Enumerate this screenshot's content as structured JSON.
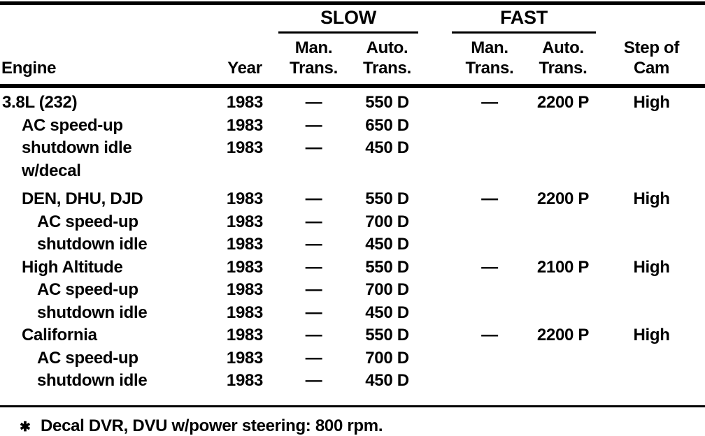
{
  "header": {
    "engine": "Engine",
    "year": "Year",
    "slow_group": "SLOW",
    "fast_group": "FAST",
    "slow_man_line1": "Man.",
    "slow_man_line2": "Trans.",
    "slow_auto_line1": "Auto.",
    "slow_auto_line2": "Trans.",
    "fast_man_line1": "Man.",
    "fast_man_line2": "Trans.",
    "fast_auto_line1": "Auto.",
    "fast_auto_line2": "Trans.",
    "step_line1": "Step of",
    "step_line2": "Cam"
  },
  "rows": [
    {
      "engine": "3.8L (232)",
      "year": "1983",
      "slow_man": "—",
      "slow_auto": "550 D",
      "fast_man": "—",
      "fast_auto": "2200 P",
      "step": "High"
    },
    {
      "engine": "AC speed-up",
      "year": "1983",
      "slow_man": "—",
      "slow_auto": "650 D",
      "fast_man": "",
      "fast_auto": "",
      "step": ""
    },
    {
      "engine": "shutdown idle",
      "year": "1983",
      "slow_man": "—",
      "slow_auto": "450 D",
      "fast_man": "",
      "fast_auto": "",
      "step": ""
    },
    {
      "engine": "w/decal",
      "year": "",
      "slow_man": "",
      "slow_auto": "",
      "fast_man": "",
      "fast_auto": "",
      "step": ""
    },
    {
      "engine": "DEN, DHU, DJD",
      "year": "1983",
      "slow_man": "—",
      "slow_auto": "550 D",
      "fast_man": "—",
      "fast_auto": "2200 P",
      "step": "High"
    },
    {
      "engine": "AC speed-up",
      "year": "1983",
      "slow_man": "—",
      "slow_auto": "700 D",
      "fast_man": "",
      "fast_auto": "",
      "step": ""
    },
    {
      "engine": "shutdown idle",
      "year": "1983",
      "slow_man": "—",
      "slow_auto": "450 D",
      "fast_man": "",
      "fast_auto": "",
      "step": ""
    },
    {
      "engine": "High Altitude",
      "year": "1983",
      "slow_man": "—",
      "slow_auto": "550 D",
      "fast_man": "—",
      "fast_auto": "2100 P",
      "step": "High"
    },
    {
      "engine": "AC speed-up",
      "year": "1983",
      "slow_man": "—",
      "slow_auto": "700 D",
      "fast_man": "",
      "fast_auto": "",
      "step": ""
    },
    {
      "engine": "shutdown idle",
      "year": "1983",
      "slow_man": "—",
      "slow_auto": "450 D",
      "fast_man": "",
      "fast_auto": "",
      "step": ""
    },
    {
      "engine": "California",
      "year": "1983",
      "slow_man": "—",
      "slow_auto": "550 D",
      "fast_man": "—",
      "fast_auto": "2200 P",
      "step": "High"
    },
    {
      "engine": "AC speed-up",
      "year": "1983",
      "slow_man": "—",
      "slow_auto": "700 D",
      "fast_man": "",
      "fast_auto": "",
      "step": ""
    },
    {
      "engine": "shutdown idle",
      "year": "1983",
      "slow_man": "—",
      "slow_auto": "450 D",
      "fast_man": "",
      "fast_auto": "",
      "step": ""
    }
  ],
  "footnote": {
    "marker": "✱",
    "text": "Decal DVR, DVU w/power steering: 800 rpm."
  },
  "colors": {
    "ink": "#000000",
    "paper": "#ffffff"
  }
}
